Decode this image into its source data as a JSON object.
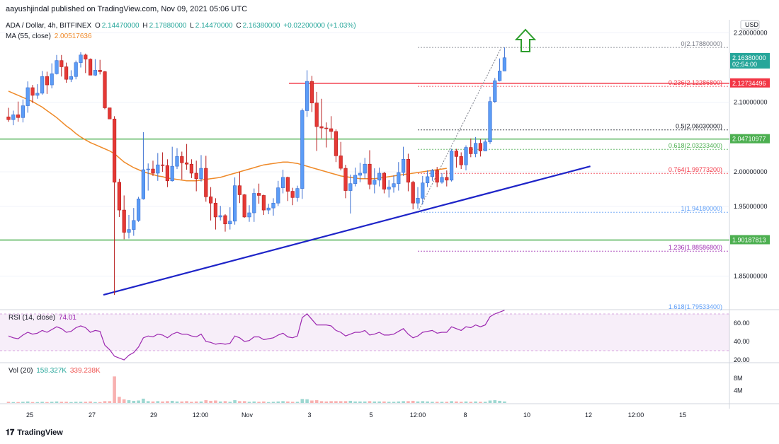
{
  "header": {
    "publisher": "aayushjindal published on TradingView.com, Nov 09, 2021 05:06 UTC"
  },
  "legend": {
    "symbol": "ADA / Dollar, 4h, BITFINEX",
    "o_label": "O",
    "o": "2.14470000",
    "h_label": "H",
    "h": "2.17880000",
    "l_label": "L",
    "l": "2.14470000",
    "c_label": "C",
    "c": "2.16380000",
    "change": "+0.02200000 (+1.03%)",
    "ma_label": "MA (55, close)",
    "ma_value": "2.00517636"
  },
  "rsi": {
    "label": "RSI (14, close)",
    "value": "74.01"
  },
  "volume": {
    "label": "Vol (20)",
    "value1": "158.327K",
    "value2": "339.238K"
  },
  "footer": {
    "brand": "TradingView"
  },
  "chart_data": {
    "type": "candlestick",
    "price_axis": {
      "currency": "USD",
      "ticks": [
        "2.20000000",
        "2.10000000",
        "2.00000000",
        "1.95000000",
        "1.85000000"
      ],
      "ylim": [
        1.805,
        2.225
      ]
    },
    "x_ticks": [
      "25",
      "27",
      "29",
      "12:00",
      "Nov",
      "3",
      "5",
      "12:00",
      "8",
      "10",
      "12",
      "12:00",
      "15"
    ],
    "price_badges": [
      {
        "value": "2.16380000",
        "sub": "02:54:00",
        "color": "#26a69a"
      },
      {
        "value": "2.12734496",
        "color": "#f23645"
      },
      {
        "value": "2.04710977",
        "color": "#4caf50"
      },
      {
        "value": "1.90187813",
        "color": "#4caf50"
      }
    ],
    "horizontal_levels": [
      {
        "value": 2.12734496,
        "color": "#f23645"
      },
      {
        "value": 2.04710977,
        "color": "#4caf50"
      },
      {
        "value": 1.90187813,
        "color": "#4caf50"
      }
    ],
    "fib_levels": [
      {
        "ratio": "0",
        "value": "2.17880000",
        "price": 2.1788,
        "color": "#787b86"
      },
      {
        "ratio": "0.236",
        "value": "2.12286800",
        "price": 2.122868,
        "color": "#f23645"
      },
      {
        "ratio": "0.5",
        "value": "2.06030000",
        "price": 2.0603,
        "color": "#131722"
      },
      {
        "ratio": "0.618",
        "value": "2.03233400",
        "price": 2.032334,
        "color": "#4caf50"
      },
      {
        "ratio": "0.764",
        "value": "1.99773200",
        "price": 1.997732,
        "color": "#f23645"
      },
      {
        "ratio": "1",
        "value": "1.94180000",
        "price": 1.9418,
        "color": "#5b9cf6"
      },
      {
        "ratio": "1.236",
        "value": "1.88586800",
        "price": 1.885868,
        "color": "#9c27b0"
      },
      {
        "ratio": "1.618",
        "value": "1.79533400",
        "price": 1.795334,
        "color": "#5b9cf6"
      }
    ],
    "trendline": {
      "from": [
        0,
        1.823
      ],
      "to": [
        112,
        2.008
      ],
      "color": "#1e24c8"
    },
    "candles": [
      [
        2.079,
        2.075,
        2.092,
        2.072
      ],
      [
        2.075,
        2.082,
        2.088,
        2.067
      ],
      [
        2.082,
        2.078,
        2.101,
        2.072
      ],
      [
        2.078,
        2.095,
        2.104,
        2.071
      ],
      [
        2.095,
        2.121,
        2.13,
        2.085
      ],
      [
        2.121,
        2.11,
        2.125,
        2.099
      ],
      [
        2.11,
        2.113,
        2.126,
        2.105
      ],
      [
        2.113,
        2.137,
        2.145,
        2.111
      ],
      [
        2.137,
        2.125,
        2.144,
        2.112
      ],
      [
        2.125,
        2.141,
        2.156,
        2.12
      ],
      [
        2.141,
        2.16,
        2.168,
        2.14
      ],
      [
        2.16,
        2.151,
        2.168,
        2.137
      ],
      [
        2.151,
        2.133,
        2.157,
        2.128
      ],
      [
        2.133,
        2.137,
        2.146,
        2.129
      ],
      [
        2.137,
        2.157,
        2.16,
        2.133
      ],
      [
        2.157,
        2.168,
        2.172,
        2.15
      ],
      [
        2.168,
        2.162,
        2.17,
        2.142
      ],
      [
        2.162,
        2.139,
        2.163,
        2.139
      ],
      [
        2.139,
        2.146,
        2.162,
        2.138
      ],
      [
        2.146,
        2.144,
        2.161,
        2.14
      ],
      [
        2.144,
        2.092,
        2.145,
        2.09
      ],
      [
        2.092,
        2.076,
        2.092,
        2.076
      ],
      [
        2.076,
        1.985,
        2.08,
        1.823
      ],
      [
        1.985,
        1.945,
        1.99,
        1.935
      ],
      [
        1.945,
        1.913,
        1.966,
        1.903
      ],
      [
        1.913,
        1.917,
        1.938,
        1.904
      ],
      [
        1.917,
        1.93,
        1.948,
        1.908
      ],
      [
        1.93,
        1.961,
        1.964,
        1.928
      ],
      [
        1.961,
        2.003,
        2.057,
        1.96
      ],
      [
        2.003,
        2.004,
        2.012,
        1.973
      ],
      [
        2.004,
        1.998,
        2.016,
        1.994
      ],
      [
        1.998,
        2.01,
        2.027,
        1.987
      ],
      [
        2.01,
        2.009,
        2.028,
        2.0
      ],
      [
        2.009,
        1.987,
        2.018,
        1.978
      ],
      [
        1.987,
        2.008,
        2.036,
        1.986
      ],
      [
        2.008,
        2.022,
        2.034,
        2.004
      ],
      [
        2.022,
        2.013,
        2.029,
        1.989
      ],
      [
        2.013,
        2.011,
        2.04,
        2.003
      ],
      [
        2.011,
        1.998,
        2.018,
        1.991
      ],
      [
        1.998,
        1.99,
        2.016,
        1.972
      ],
      [
        1.99,
        2.005,
        2.024,
        1.986
      ],
      [
        2.005,
        1.964,
        2.023,
        1.957
      ],
      [
        1.964,
        1.955,
        1.978,
        1.93
      ],
      [
        1.955,
        1.935,
        1.962,
        1.917
      ],
      [
        1.935,
        1.937,
        1.951,
        1.93
      ],
      [
        1.937,
        1.925,
        1.939,
        1.914
      ],
      [
        1.925,
        1.929,
        1.949,
        1.917
      ],
      [
        1.929,
        1.98,
        1.992,
        1.924
      ],
      [
        1.98,
        1.967,
        2.0,
        1.955
      ],
      [
        1.967,
        1.935,
        1.968,
        1.934
      ],
      [
        1.935,
        1.941,
        1.952,
        1.928
      ],
      [
        1.941,
        1.969,
        1.976,
        1.928
      ],
      [
        1.969,
        1.966,
        1.983,
        1.954
      ],
      [
        1.966,
        1.945,
        1.967,
        1.938
      ],
      [
        1.945,
        1.948,
        1.954,
        1.939
      ],
      [
        1.948,
        1.955,
        1.962,
        1.937
      ],
      [
        1.955,
        1.977,
        1.987,
        1.951
      ],
      [
        1.977,
        1.992,
        2.003,
        1.969
      ],
      [
        1.992,
        1.972,
        1.993,
        1.958
      ],
      [
        1.972,
        1.963,
        1.977,
        1.952
      ],
      [
        1.963,
        1.976,
        1.98,
        1.957
      ],
      [
        1.976,
        2.088,
        2.091,
        1.961
      ],
      [
        2.088,
        2.13,
        2.146,
        2.079
      ],
      [
        2.13,
        2.099,
        2.138,
        2.086
      ],
      [
        2.099,
        2.065,
        2.115,
        2.03
      ],
      [
        2.065,
        2.063,
        2.105,
        2.048
      ],
      [
        2.063,
        2.062,
        2.071,
        2.035
      ],
      [
        2.062,
        2.058,
        2.08,
        2.048
      ],
      [
        2.058,
        2.023,
        2.061,
        2.014
      ],
      [
        2.023,
        2.005,
        2.043,
        2.002
      ],
      [
        2.005,
        1.973,
        2.01,
        1.962
      ],
      [
        1.973,
        1.983,
        1.996,
        1.94
      ],
      [
        1.983,
        1.995,
        2.006,
        1.979
      ],
      [
        1.995,
        1.998,
        2.013,
        1.985
      ],
      [
        1.998,
        2.011,
        2.02,
        1.99
      ],
      [
        2.011,
        1.982,
        2.031,
        1.975
      ],
      [
        1.982,
        1.988,
        2.005,
        1.969
      ],
      [
        1.988,
        1.998,
        2.006,
        1.979
      ],
      [
        1.998,
        1.975,
        2.0,
        1.969
      ],
      [
        1.975,
        1.978,
        1.988,
        1.963
      ],
      [
        1.978,
        1.983,
        1.995,
        1.97
      ],
      [
        1.983,
        1.999,
        2.014,
        1.973
      ],
      [
        1.999,
        2.018,
        2.036,
        1.994
      ],
      [
        2.018,
        1.985,
        2.026,
        1.972
      ],
      [
        1.985,
        1.955,
        1.987,
        1.946
      ],
      [
        1.955,
        1.962,
        1.978,
        1.947
      ],
      [
        1.962,
        1.984,
        1.994,
        1.953
      ],
      [
        1.984,
        1.993,
        2.002,
        1.978
      ],
      [
        1.993,
        2.002,
        2.004,
        1.987
      ],
      [
        2.002,
        1.985,
        2.007,
        1.978
      ],
      [
        1.985,
        1.992,
        1.998,
        1.983
      ],
      [
        1.992,
        1.988,
        2.002,
        1.979
      ],
      [
        1.988,
        2.03,
        2.033,
        1.986
      ],
      [
        2.03,
        2.022,
        2.033,
        2.006
      ],
      [
        2.022,
        2.01,
        2.028,
        2.004
      ],
      [
        2.01,
        2.035,
        2.038,
        2.002
      ],
      [
        2.035,
        2.026,
        2.048,
        2.021
      ],
      [
        2.026,
        2.041,
        2.05,
        2.021
      ],
      [
        2.041,
        2.03,
        2.047,
        2.022
      ],
      [
        2.03,
        2.043,
        2.047,
        2.03
      ],
      [
        2.043,
        2.101,
        2.108,
        2.04
      ],
      [
        2.101,
        2.131,
        2.135,
        2.099
      ],
      [
        2.131,
        2.145,
        2.163,
        2.13
      ],
      [
        2.145,
        2.164,
        2.179,
        2.145
      ]
    ],
    "ma55": [
      2.116,
      2.113,
      2.11,
      2.107,
      2.104,
      2.101,
      2.097,
      2.093,
      2.088,
      2.083,
      2.078,
      2.072,
      2.066,
      2.061,
      2.055,
      2.05,
      2.046,
      2.042,
      2.039,
      2.036,
      2.033,
      2.03,
      2.026,
      2.02,
      2.014,
      2.01,
      2.006,
      2.003,
      2.0,
      1.998,
      1.996,
      1.994,
      1.993,
      1.991,
      1.99,
      1.989,
      1.988,
      1.987,
      1.987,
      1.987,
      1.988,
      1.989,
      1.99,
      1.991,
      1.992,
      1.994,
      1.996,
      1.998,
      2.0,
      2.002,
      2.004,
      2.006,
      2.008,
      2.01,
      2.011,
      2.012,
      2.013,
      2.014,
      2.014,
      2.013,
      2.012,
      2.01,
      2.008,
      2.006,
      2.004,
      2.002,
      2.0,
      1.998,
      1.996,
      1.994,
      1.993,
      1.992,
      1.991,
      1.99,
      1.99,
      1.99,
      1.99,
      1.991,
      1.992,
      1.993,
      1.994,
      1.995,
      1.996,
      1.997,
      1.998,
      1.999,
      2.0,
      2.001,
      2.002,
      2.003,
      2.004,
      2.005
    ],
    "rsi_axis": {
      "ticks": [
        "60.00",
        "40.00",
        "20.00"
      ],
      "band": [
        30,
        70
      ]
    },
    "rsi_values": [
      46,
      44,
      43,
      47,
      50,
      48,
      49,
      52,
      50,
      53,
      56,
      54,
      50,
      51,
      55,
      57,
      55,
      50,
      52,
      51,
      36,
      31,
      24,
      22,
      20,
      25,
      28,
      34,
      44,
      46,
      45,
      48,
      47,
      44,
      48,
      50,
      48,
      48,
      46,
      45,
      48,
      40,
      39,
      37,
      38,
      37,
      38,
      46,
      44,
      40,
      41,
      45,
      45,
      42,
      43,
      44,
      47,
      49,
      45,
      44,
      46,
      66,
      70,
      64,
      58,
      58,
      58,
      57,
      52,
      50,
      46,
      48,
      50,
      50,
      52,
      47,
      48,
      50,
      47,
      47,
      48,
      51,
      54,
      48,
      44,
      46,
      50,
      51,
      52,
      49,
      50,
      50,
      56,
      54,
      52,
      56,
      55,
      58,
      56,
      58,
      67,
      70,
      72,
      74
    ],
    "volume_axis": {
      "ticks": [
        "8M",
        "4M"
      ]
    },
    "volume_values": [
      0.4,
      0.3,
      0.3,
      0.4,
      0.5,
      0.3,
      0.3,
      0.4,
      0.3,
      0.4,
      0.5,
      0.4,
      0.4,
      0.3,
      0.4,
      0.4,
      0.4,
      0.5,
      0.3,
      0.3,
      0.6,
      0.6,
      8.6,
      2.0,
      1.2,
      0.9,
      0.7,
      0.8,
      1.4,
      0.6,
      0.5,
      0.6,
      0.5,
      0.6,
      0.7,
      0.5,
      0.5,
      0.6,
      0.4,
      0.5,
      0.5,
      0.9,
      0.7,
      0.8,
      0.5,
      0.6,
      0.4,
      0.9,
      0.6,
      0.6,
      0.4,
      0.5,
      0.4,
      0.5,
      0.3,
      0.4,
      0.5,
      0.6,
      0.5,
      0.4,
      0.4,
      1.3,
      1.2,
      0.8,
      0.9,
      0.6,
      0.5,
      0.6,
      0.6,
      0.6,
      0.6,
      0.7,
      0.5,
      0.5,
      0.5,
      0.6,
      0.5,
      0.5,
      0.5,
      0.4,
      0.4,
      0.5,
      0.6,
      0.6,
      0.7,
      0.5,
      0.6,
      0.5,
      0.4,
      0.4,
      0.4,
      0.4,
      0.6,
      0.5,
      0.4,
      0.5,
      0.4,
      0.5,
      0.4,
      0.4,
      0.8,
      0.9,
      0.7,
      0.5
    ]
  }
}
